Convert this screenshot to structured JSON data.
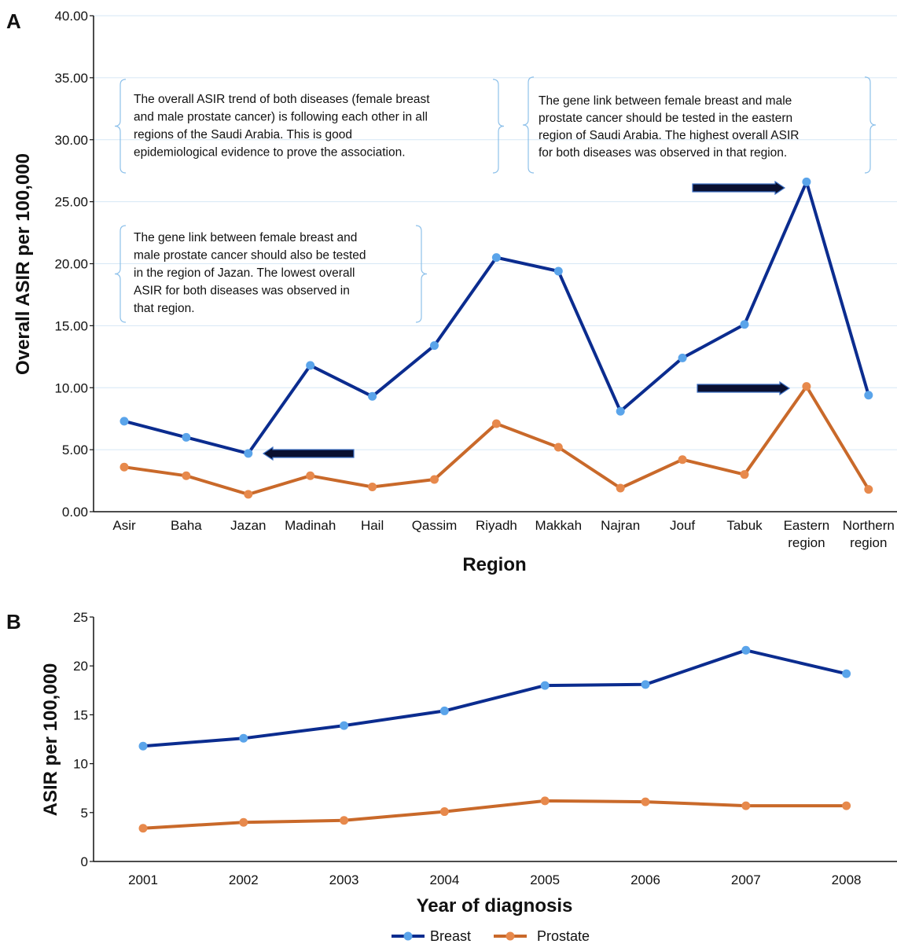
{
  "colors": {
    "breast_line": "#0b2c8f",
    "breast_marker": "#5aa4ea",
    "prostate_line": "#c9692a",
    "prostate_marker": "#e7894c",
    "grid": "#d6e7f5",
    "bracket": "#8ec1ea",
    "arrow_fill": "#0a1030",
    "arrow_stroke": "#3c6fc4"
  },
  "legend": {
    "breast": "Breast",
    "prostate": "Prostate"
  },
  "chart_data": [
    {
      "panel": "A",
      "type": "line",
      "xlabel": "Region",
      "ylabel": "Overall ASIR per 100,000",
      "ylim": [
        0,
        40
      ],
      "yticks": [
        "0.00",
        "5.00",
        "10.00",
        "15.00",
        "20.00",
        "25.00",
        "30.00",
        "35.00",
        "40.00"
      ],
      "grid": true,
      "categories": [
        [
          "Asir"
        ],
        [
          "Baha"
        ],
        [
          "Jazan"
        ],
        [
          "Madinah"
        ],
        [
          "Hail"
        ],
        [
          "Qassim"
        ],
        [
          "Riyadh"
        ],
        [
          "Makkah"
        ],
        [
          "Najran"
        ],
        [
          "Jouf"
        ],
        [
          "Tabuk"
        ],
        [
          "Eastern",
          "region"
        ],
        [
          "Northern",
          "region"
        ]
      ],
      "series": [
        {
          "name": "Breast",
          "values": [
            7.3,
            6.0,
            4.7,
            11.8,
            9.3,
            13.4,
            20.5,
            19.4,
            8.1,
            12.4,
            15.1,
            26.6,
            9.4
          ]
        },
        {
          "name": "Prostate",
          "values": [
            3.6,
            2.9,
            1.4,
            2.9,
            2.0,
            2.6,
            7.1,
            5.2,
            1.9,
            4.2,
            3.0,
            10.1,
            1.8
          ]
        }
      ],
      "annotations": [
        [
          "The overall ASIR trend of both diseases (female breast",
          "and male prostate cancer) is following each other in all",
          "regions of the Saudi Arabia. This is good",
          "epidemiological evidence to prove the association."
        ],
        [
          "The gene link between female breast and male",
          "prostate cancer should be tested in the eastern",
          "region of Saudi Arabia. The highest overall ASIR",
          "for both diseases was observed in that region."
        ],
        [
          "The gene link between female breast and",
          "male prostate cancer should also be tested",
          "in the region of Jazan. The lowest overall",
          "ASIR for both diseases was observed in",
          "that region."
        ]
      ]
    },
    {
      "panel": "B",
      "type": "line",
      "xlabel": "Year of diagnosis",
      "ylabel": "ASIR per 100,000",
      "ylim": [
        0,
        25
      ],
      "yticks": [
        "0",
        "5",
        "10",
        "15",
        "20",
        "25"
      ],
      "grid": false,
      "categories": [
        [
          "2001"
        ],
        [
          "2002"
        ],
        [
          "2003"
        ],
        [
          "2004"
        ],
        [
          "2005"
        ],
        [
          "2006"
        ],
        [
          "2007"
        ],
        [
          "2008"
        ]
      ],
      "series": [
        {
          "name": "Breast",
          "values": [
            11.8,
            12.6,
            13.9,
            15.4,
            18.0,
            18.1,
            21.6,
            19.2
          ]
        },
        {
          "name": "Prostate",
          "values": [
            3.4,
            4.0,
            4.2,
            5.1,
            6.2,
            6.1,
            5.7,
            5.7
          ]
        }
      ]
    }
  ]
}
